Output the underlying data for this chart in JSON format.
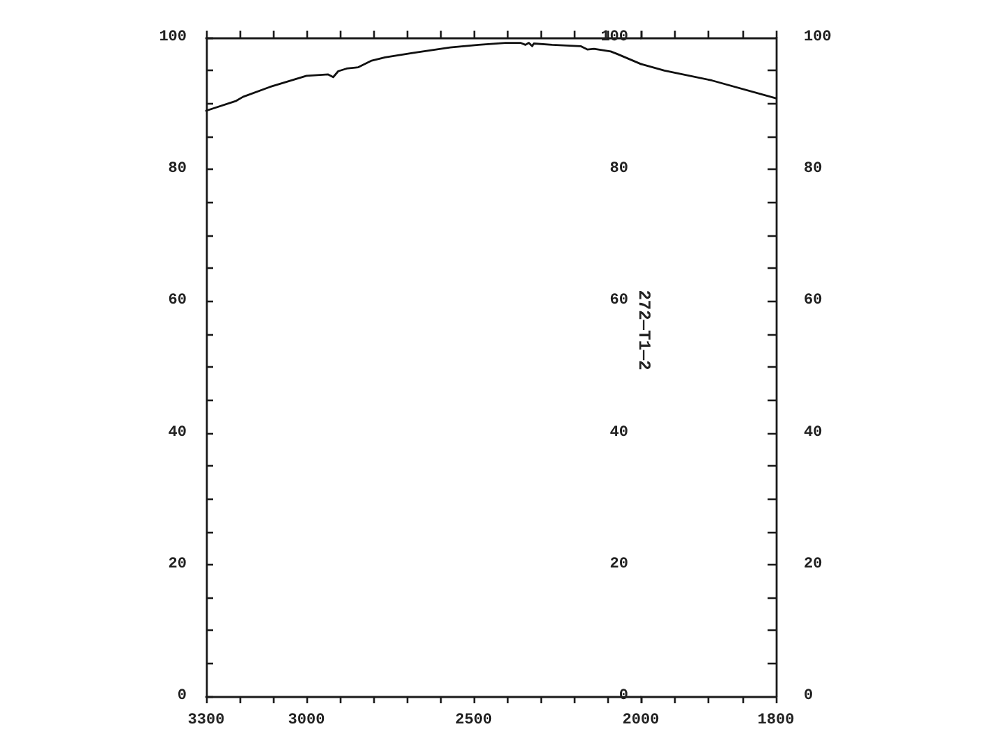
{
  "chart_data": [
    {
      "type": "line",
      "x": [
        3300,
        3210,
        3190,
        3110,
        3000,
        2935,
        2920,
        2905,
        2880,
        2845,
        2805,
        2765,
        2680,
        2570,
        2485,
        2405,
        2360,
        2345,
        2335,
        2325,
        2320,
        2265,
        2180,
        2160,
        2140,
        2090,
        2070,
        2000
      ],
      "values": [
        88.9,
        90.4,
        91.0,
        92.5,
        94.2,
        94.4,
        94.0,
        94.9,
        95.3,
        95.5,
        96.5,
        97.0,
        97.7,
        98.5,
        98.9,
        99.2,
        99.2,
        98.9,
        99.2,
        98.7,
        99.1,
        98.9,
        98.7,
        98.2,
        98.3,
        97.9,
        97.5,
        96.0
      ],
      "color": "#111111",
      "xlim": [
        3300,
        2000
      ],
      "xticks": [
        3300,
        {
          "value": 3200,
          "label": null
        },
        {
          "value": 3100,
          "label": null
        },
        3000,
        {
          "value": 2900,
          "label": null
        },
        {
          "value": 2800,
          "label": null
        },
        {
          "value": 2700,
          "label": null
        },
        {
          "value": 2600,
          "label": null
        },
        2500,
        {
          "value": 2400,
          "label": null
        },
        {
          "value": 2300,
          "label": null
        },
        {
          "value": 2200,
          "label": null
        },
        {
          "value": 2100,
          "label": null
        },
        {
          "value": 2000,
          "label": null
        }
      ],
      "ylim": [
        0,
        100
      ],
      "yticks": [
        0,
        {
          "value": 5,
          "label": null
        },
        {
          "value": 10,
          "label": null
        },
        {
          "value": 15,
          "label": null
        },
        20,
        {
          "value": 25,
          "label": null
        },
        {
          "value": 30,
          "label": null
        },
        {
          "value": 35,
          "label": null
        },
        40,
        {
          "value": 45,
          "label": null
        },
        {
          "value": 50,
          "label": null
        },
        {
          "value": 55,
          "label": null
        },
        60,
        {
          "value": 65,
          "label": null
        },
        {
          "value": 70,
          "label": null
        },
        {
          "value": 75,
          "label": null
        },
        80,
        {
          "value": 85,
          "label": null
        },
        {
          "value": 90,
          "label": null
        },
        {
          "value": 95,
          "label": null
        },
        100
      ]
    },
    {
      "type": "line",
      "x": [
        2000,
        1965,
        1895,
        1800
      ],
      "values": [
        96.0,
        95.0,
        93.5,
        90.8
      ],
      "color": "#111111",
      "xlim": [
        2000,
        1800
      ],
      "xticks": [
        2000,
        {
          "value": 1950,
          "label": null
        },
        {
          "value": 1900,
          "label": null
        },
        {
          "value": 1850,
          "label": null
        },
        1800
      ],
      "ylim": [
        0,
        100
      ],
      "yticks": [
        0,
        20,
        40,
        60,
        80,
        100
      ],
      "y2lim": [
        0,
        100
      ],
      "y2ticks": [
        0,
        {
          "value": 5,
          "label": null
        },
        {
          "value": 10,
          "label": null
        },
        {
          "value": 15,
          "label": null
        },
        20,
        {
          "value": 25,
          "label": null
        },
        {
          "value": 30,
          "label": null
        },
        {
          "value": 35,
          "label": null
        },
        40,
        {
          "value": 45,
          "label": null
        },
        {
          "value": 50,
          "label": null
        },
        {
          "value": 55,
          "label": null
        },
        60,
        {
          "value": 65,
          "label": null
        },
        {
          "value": 70,
          "label": null
        },
        {
          "value": 75,
          "label": null
        },
        80,
        {
          "value": 85,
          "label": null
        },
        {
          "value": 90,
          "label": null
        },
        {
          "value": 95,
          "label": null
        },
        100
      ],
      "annotations": [
        "272—T1—2"
      ]
    }
  ]
}
